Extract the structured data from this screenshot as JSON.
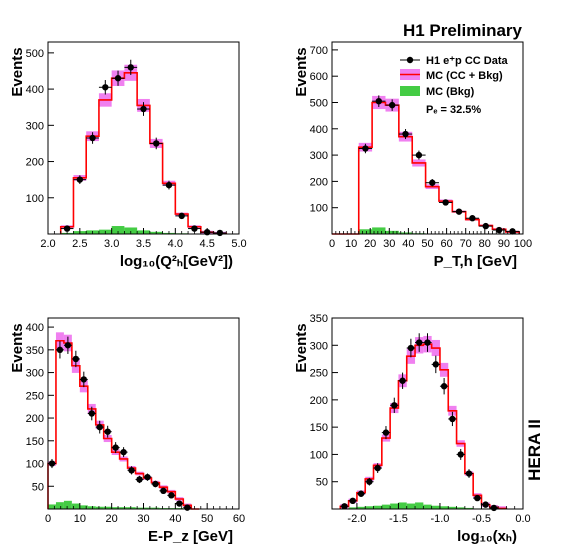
{
  "title": "H1 Preliminary",
  "side_label": "HERA II",
  "legend": {
    "data": "H1 e⁺p CC Data",
    "mc_total": "MC (CC + Bkg)",
    "mc_bkg": "MC (Bkg)",
    "polarization": "Pₑ = 32.5%"
  },
  "colors": {
    "mc_band": "#f080f0",
    "mc_line": "#ff0000",
    "bkg": "#44cc44",
    "data": "#000000"
  },
  "chart_data": [
    {
      "id": "q2",
      "type": "histogram",
      "xlabel": "log₁₀(Q²ₕ[GeV²])",
      "ylabel": "Events",
      "xlim": [
        2.0,
        5.0
      ],
      "ylim": [
        0,
        530
      ],
      "xticks": [
        2.0,
        2.5,
        3.0,
        3.5,
        4.0,
        4.5,
        5.0
      ],
      "xtick_labels": [
        "2.0",
        "2.5",
        "3.0",
        "3.5",
        "4.0",
        "4.5",
        "5.0"
      ],
      "yticks": [
        100,
        200,
        300,
        400,
        500
      ],
      "bin_edges": [
        2.2,
        2.4,
        2.6,
        2.8,
        3.0,
        3.2,
        3.4,
        3.6,
        3.8,
        4.0,
        4.2,
        4.4,
        4.6,
        4.8
      ],
      "mc_total": [
        20,
        155,
        270,
        370,
        430,
        445,
        355,
        250,
        140,
        55,
        20,
        5,
        2
      ],
      "mc_bkg": [
        3,
        8,
        10,
        12,
        22,
        18,
        10,
        6,
        3,
        2,
        1,
        0,
        0
      ],
      "data": [
        15,
        150,
        265,
        405,
        430,
        460,
        345,
        250,
        135,
        50,
        15,
        5,
        3
      ],
      "data_err": [
        4,
        12,
        16,
        20,
        21,
        21,
        19,
        16,
        12,
        7,
        4,
        2,
        2
      ]
    },
    {
      "id": "pt",
      "type": "histogram",
      "xlabel": "P_T,h [GeV]",
      "ylabel": "Events",
      "xlim": [
        0,
        100
      ],
      "ylim": [
        0,
        730
      ],
      "xticks": [
        0,
        10,
        20,
        30,
        40,
        50,
        60,
        70,
        80,
        90,
        100
      ],
      "xtick_labels": [
        "0",
        "10",
        "20",
        "30",
        "40",
        "50",
        "60",
        "70",
        "80",
        "90",
        "100"
      ],
      "yticks": [
        100,
        200,
        300,
        400,
        500,
        600,
        700
      ],
      "bin_edges": [
        0,
        7,
        14,
        21,
        28,
        35,
        42,
        49,
        56,
        63,
        70,
        77,
        84,
        91,
        98
      ],
      "mc_total": [
        0,
        0,
        330,
        500,
        490,
        370,
        270,
        180,
        125,
        85,
        55,
        32,
        18,
        8
      ],
      "mc_bkg": [
        0,
        0,
        18,
        25,
        12,
        6,
        3,
        1,
        0,
        0,
        0,
        0,
        0,
        0
      ],
      "data": [
        null,
        null,
        325,
        505,
        490,
        380,
        300,
        195,
        120,
        85,
        60,
        30,
        15,
        10
      ],
      "data_err": [
        0,
        0,
        18,
        22,
        22,
        19,
        17,
        14,
        11,
        9,
        8,
        5,
        4,
        3
      ]
    },
    {
      "id": "epz",
      "type": "histogram",
      "xlabel": "E-P_z [GeV]",
      "ylabel": "Events",
      "xlim": [
        0,
        60
      ],
      "ylim": [
        0,
        420
      ],
      "xticks": [
        0,
        10,
        20,
        30,
        40,
        50,
        60
      ],
      "xtick_labels": [
        "0",
        "10",
        "20",
        "30",
        "40",
        "50",
        "60"
      ],
      "yticks": [
        50,
        100,
        150,
        200,
        250,
        300,
        350,
        400
      ],
      "bin_edges": [
        0,
        2.5,
        5,
        7.5,
        10,
        12.5,
        15,
        17.5,
        20,
        22.5,
        25,
        27.5,
        30,
        32.5,
        35,
        37.5,
        40,
        42.5,
        45,
        47.5
      ],
      "mc_total": [
        100,
        370,
        365,
        315,
        270,
        220,
        185,
        155,
        125,
        110,
        90,
        78,
        68,
        58,
        48,
        38,
        22,
        8,
        0
      ],
      "mc_bkg": [
        10,
        15,
        18,
        12,
        8,
        6,
        5,
        5,
        4,
        4,
        4,
        3,
        3,
        3,
        2,
        2,
        2,
        1,
        0
      ],
      "data": [
        100,
        350,
        360,
        330,
        285,
        210,
        180,
        170,
        135,
        125,
        85,
        65,
        70,
        55,
        40,
        30,
        12,
        3,
        null
      ],
      "data_err": [
        10,
        19,
        19,
        18,
        17,
        15,
        14,
        13,
        12,
        11,
        9,
        8,
        8,
        7,
        6,
        5,
        4,
        2,
        0
      ]
    },
    {
      "id": "xh",
      "type": "histogram",
      "xlabel": "log₁₀(xₕ)",
      "ylabel": "Events",
      "xlim": [
        -2.3,
        0.0
      ],
      "ylim": [
        0,
        350
      ],
      "xticks": [
        -2.0,
        -1.5,
        -1.0,
        -0.5,
        0.0
      ],
      "xtick_labels": [
        "-2.0",
        "-1.5",
        "-1.0",
        "-0.5",
        "0.0"
      ],
      "yticks": [
        50,
        100,
        150,
        200,
        250,
        300,
        350
      ],
      "bin_edges": [
        -2.2,
        -2.1,
        -2.0,
        -1.9,
        -1.8,
        -1.7,
        -1.6,
        -1.5,
        -1.4,
        -1.3,
        -1.2,
        -1.1,
        -1.0,
        -0.9,
        -0.8,
        -0.7,
        -0.6,
        -0.5,
        -0.4,
        -0.3,
        -0.2
      ],
      "mc_total": [
        5,
        15,
        30,
        55,
        80,
        130,
        185,
        235,
        280,
        300,
        302,
        295,
        255,
        180,
        120,
        65,
        25,
        8,
        3,
        1
      ],
      "mc_bkg": [
        2,
        3,
        4,
        5,
        6,
        8,
        10,
        12,
        10,
        12,
        8,
        6,
        5,
        4,
        3,
        2,
        1,
        0,
        0,
        0
      ],
      "data": [
        5,
        15,
        28,
        50,
        75,
        140,
        190,
        235,
        295,
        305,
        305,
        265,
        225,
        165,
        100,
        65,
        20,
        8,
        2,
        0
      ],
      "data_err": [
        3,
        4,
        6,
        7,
        9,
        12,
        14,
        15,
        17,
        17,
        17,
        16,
        15,
        13,
        10,
        8,
        5,
        3,
        2,
        0
      ]
    }
  ]
}
